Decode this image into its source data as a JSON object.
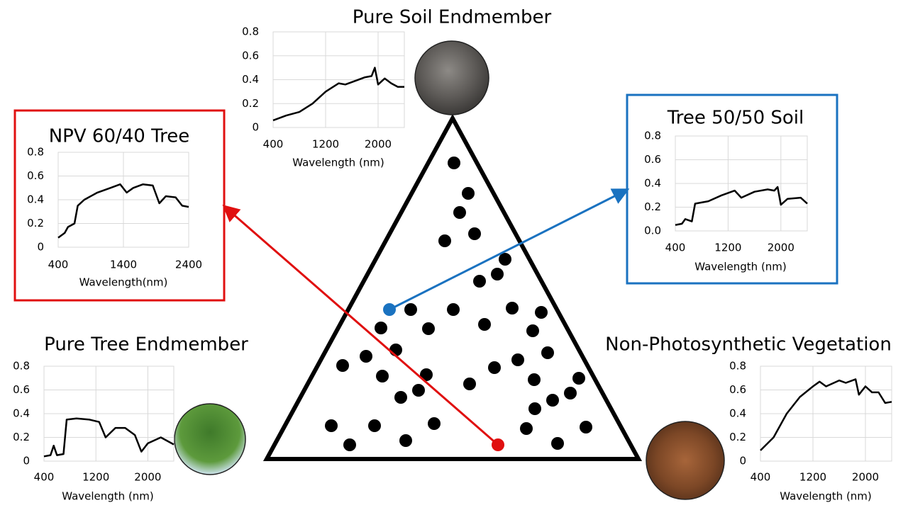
{
  "chart_data": [
    {
      "type": "line",
      "title": "Pure Soil Endmember",
      "xlabel": "Wavelength (nm)",
      "color": "#000000",
      "x": [
        400,
        600,
        800,
        1000,
        1200,
        1400,
        1500,
        1600,
        1800,
        1900,
        1950,
        2000,
        2100,
        2200,
        2300,
        2400
      ],
      "values": [
        0.06,
        0.1,
        0.13,
        0.2,
        0.3,
        0.37,
        0.36,
        0.38,
        0.42,
        0.43,
        0.5,
        0.36,
        0.41,
        0.37,
        0.34,
        0.34
      ],
      "xlim": [
        400,
        2400
      ],
      "xticks": [
        400,
        1200,
        2000
      ],
      "ylim": [
        0,
        0.8
      ],
      "yticks": [
        0,
        0.2,
        0.4,
        0.6,
        0.8
      ],
      "grid": true
    },
    {
      "type": "line",
      "title": "NPV 60/40 Tree",
      "xlabel": "Wavelength(nm)",
      "color": "#000000",
      "x": [
        400,
        500,
        550,
        650,
        700,
        800,
        1000,
        1200,
        1350,
        1450,
        1550,
        1700,
        1850,
        1950,
        2050,
        2200,
        2300,
        2400
      ],
      "values": [
        0.08,
        0.12,
        0.17,
        0.2,
        0.35,
        0.4,
        0.46,
        0.5,
        0.53,
        0.46,
        0.5,
        0.53,
        0.52,
        0.37,
        0.43,
        0.42,
        0.35,
        0.34
      ],
      "xlim": [
        400,
        2400
      ],
      "xticks": [
        400,
        1400,
        2400
      ],
      "ylim": [
        0,
        0.8
      ],
      "yticks": [
        0,
        0.2,
        0.4,
        0.6,
        0.8
      ],
      "grid": true
    },
    {
      "type": "line",
      "title": "Tree 50/50 Soil",
      "xlabel": "Wavelength (nm)",
      "color": "#000000",
      "x": [
        400,
        500,
        550,
        650,
        700,
        900,
        1100,
        1300,
        1400,
        1600,
        1800,
        1900,
        1950,
        2000,
        2100,
        2300,
        2400
      ],
      "values": [
        0.05,
        0.06,
        0.1,
        0.08,
        0.23,
        0.25,
        0.3,
        0.34,
        0.28,
        0.33,
        0.35,
        0.34,
        0.37,
        0.22,
        0.27,
        0.28,
        0.23
      ],
      "xlim": [
        400,
        2400
      ],
      "xticks": [
        400,
        1200,
        2000
      ],
      "ylim": [
        0,
        0.8
      ],
      "yticks": [
        {
          "value": 0,
          "label": "0.0"
        },
        0.2,
        0.4,
        0.6,
        0.8
      ],
      "grid": true
    },
    {
      "type": "line",
      "title": "Pure Tree Endmember",
      "xlabel": "Wavelength (nm)",
      "color": "#000000",
      "x": [
        400,
        500,
        550,
        600,
        700,
        750,
        900,
        1100,
        1250,
        1350,
        1500,
        1650,
        1800,
        1900,
        2000,
        2200,
        2400
      ],
      "values": [
        0.04,
        0.05,
        0.13,
        0.05,
        0.06,
        0.35,
        0.36,
        0.35,
        0.33,
        0.2,
        0.28,
        0.28,
        0.22,
        0.08,
        0.15,
        0.2,
        0.14
      ],
      "xlim": [
        400,
        2400
      ],
      "xticks": [
        400,
        1200,
        2000
      ],
      "ylim": [
        0,
        0.8
      ],
      "yticks": [
        0,
        0.2,
        0.4,
        0.6,
        0.8
      ],
      "grid": true
    },
    {
      "type": "line",
      "title": "Non-Photosynthetic Vegetation",
      "xlabel": "Wavelength (nm)",
      "color": "#000000",
      "x": [
        400,
        600,
        800,
        1000,
        1200,
        1300,
        1400,
        1600,
        1700,
        1850,
        1900,
        2000,
        2100,
        2200,
        2300,
        2400
      ],
      "values": [
        0.09,
        0.2,
        0.4,
        0.54,
        0.63,
        0.67,
        0.63,
        0.68,
        0.66,
        0.69,
        0.56,
        0.63,
        0.58,
        0.58,
        0.49,
        0.5
      ],
      "xlim": [
        400,
        2400
      ],
      "xticks": [
        400,
        1200,
        2000
      ],
      "ylim": [
        0,
        0.8
      ],
      "yticks": [
        0,
        0.2,
        0.4,
        0.6,
        0.8
      ],
      "grid": true
    }
  ]
}
